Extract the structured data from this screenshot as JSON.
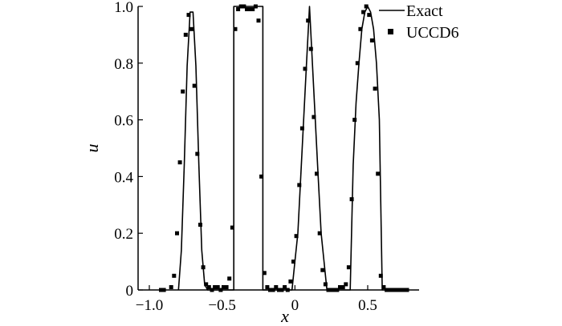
{
  "chart_data": {
    "type": "line",
    "title": "",
    "xlabel": "x",
    "ylabel": "u",
    "xlim": [
      -1.0,
      0.85
    ],
    "ylim": [
      0,
      1.0
    ],
    "grid": false,
    "legend_position": "top-right",
    "x_ticks": [
      -1.0,
      -0.5,
      0,
      0.5
    ],
    "x_tick_labels": [
      "−1.0",
      "−0.5",
      "0",
      "0.5"
    ],
    "y_ticks": [
      0,
      0.2,
      0.4,
      0.6,
      0.8,
      1.0
    ],
    "y_tick_labels": [
      "0",
      "0.2",
      "0.4",
      "0.6",
      "0.8",
      "1.0"
    ],
    "series": [
      {
        "name": "Exact",
        "style": "line",
        "color": "#000000",
        "x": [
          -0.8,
          -0.78,
          -0.76,
          -0.74,
          -0.72,
          -0.7,
          -0.68,
          -0.66,
          -0.64,
          -0.62,
          -0.6,
          -0.42,
          -0.42,
          -0.4,
          -0.3,
          -0.22,
          -0.22,
          -0.2,
          -0.02,
          0.0,
          0.02,
          0.04,
          0.06,
          0.08,
          0.1,
          0.12,
          0.14,
          0.16,
          0.18,
          0.2,
          0.22,
          0.38,
          0.4,
          0.42,
          0.44,
          0.46,
          0.48,
          0.5,
          0.52,
          0.54,
          0.56,
          0.58,
          0.6,
          0.62
        ],
        "y": [
          0,
          0.14,
          0.44,
          0.79,
          0.98,
          0.98,
          0.79,
          0.44,
          0.14,
          0.02,
          0,
          0,
          1.0,
          1.0,
          1.0,
          1.0,
          0,
          0,
          0,
          0.1,
          0.2,
          0.4,
          0.6,
          0.8,
          1.0,
          0.8,
          0.6,
          0.4,
          0.2,
          0.1,
          0,
          0,
          0.44,
          0.66,
          0.8,
          0.92,
          0.98,
          1.0,
          0.98,
          0.92,
          0.8,
          0.6,
          0.0,
          0
        ]
      },
      {
        "name": "UCCD6",
        "style": "marker",
        "marker": "square",
        "color": "#000000",
        "x": [
          -0.92,
          -0.9,
          -0.85,
          -0.83,
          -0.81,
          -0.79,
          -0.77,
          -0.75,
          -0.73,
          -0.71,
          -0.69,
          -0.67,
          -0.65,
          -0.63,
          -0.61,
          -0.59,
          -0.57,
          -0.55,
          -0.53,
          -0.51,
          -0.49,
          -0.47,
          -0.45,
          -0.43,
          -0.41,
          -0.39,
          -0.37,
          -0.35,
          -0.33,
          -0.31,
          -0.29,
          -0.27,
          -0.25,
          -0.23,
          -0.21,
          -0.19,
          -0.17,
          -0.15,
          -0.13,
          -0.11,
          -0.09,
          -0.07,
          -0.05,
          -0.03,
          -0.01,
          0.01,
          0.03,
          0.05,
          0.07,
          0.09,
          0.11,
          0.13,
          0.15,
          0.17,
          0.19,
          0.21,
          0.23,
          0.25,
          0.27,
          0.29,
          0.31,
          0.33,
          0.35,
          0.37,
          0.39,
          0.41,
          0.43,
          0.45,
          0.47,
          0.49,
          0.51,
          0.53,
          0.55,
          0.57,
          0.59,
          0.61,
          0.63,
          0.65,
          0.67,
          0.69,
          0.71,
          0.73,
          0.75,
          0.77
        ],
        "y": [
          0,
          0,
          0.01,
          0.05,
          0.2,
          0.45,
          0.7,
          0.9,
          0.97,
          0.92,
          0.72,
          0.48,
          0.23,
          0.08,
          0.02,
          0.01,
          0,
          0.01,
          0.01,
          0,
          0.01,
          0.01,
          0.04,
          0.22,
          0.92,
          0.99,
          1.0,
          1.0,
          0.99,
          0.99,
          0.99,
          1.0,
          0.95,
          0.4,
          0.06,
          0.01,
          0,
          0,
          0.01,
          0,
          0,
          0.01,
          0,
          0.03,
          0.1,
          0.19,
          0.37,
          0.57,
          0.78,
          0.95,
          0.85,
          0.61,
          0.41,
          0.2,
          0.07,
          0.02,
          0,
          0,
          0,
          0,
          0.01,
          0.01,
          0.02,
          0.08,
          0.32,
          0.6,
          0.8,
          0.92,
          0.98,
          1.0,
          0.97,
          0.88,
          0.71,
          0.41,
          0.05,
          0.01,
          0,
          0,
          0,
          0,
          0,
          0,
          0,
          0
        ]
      }
    ]
  }
}
